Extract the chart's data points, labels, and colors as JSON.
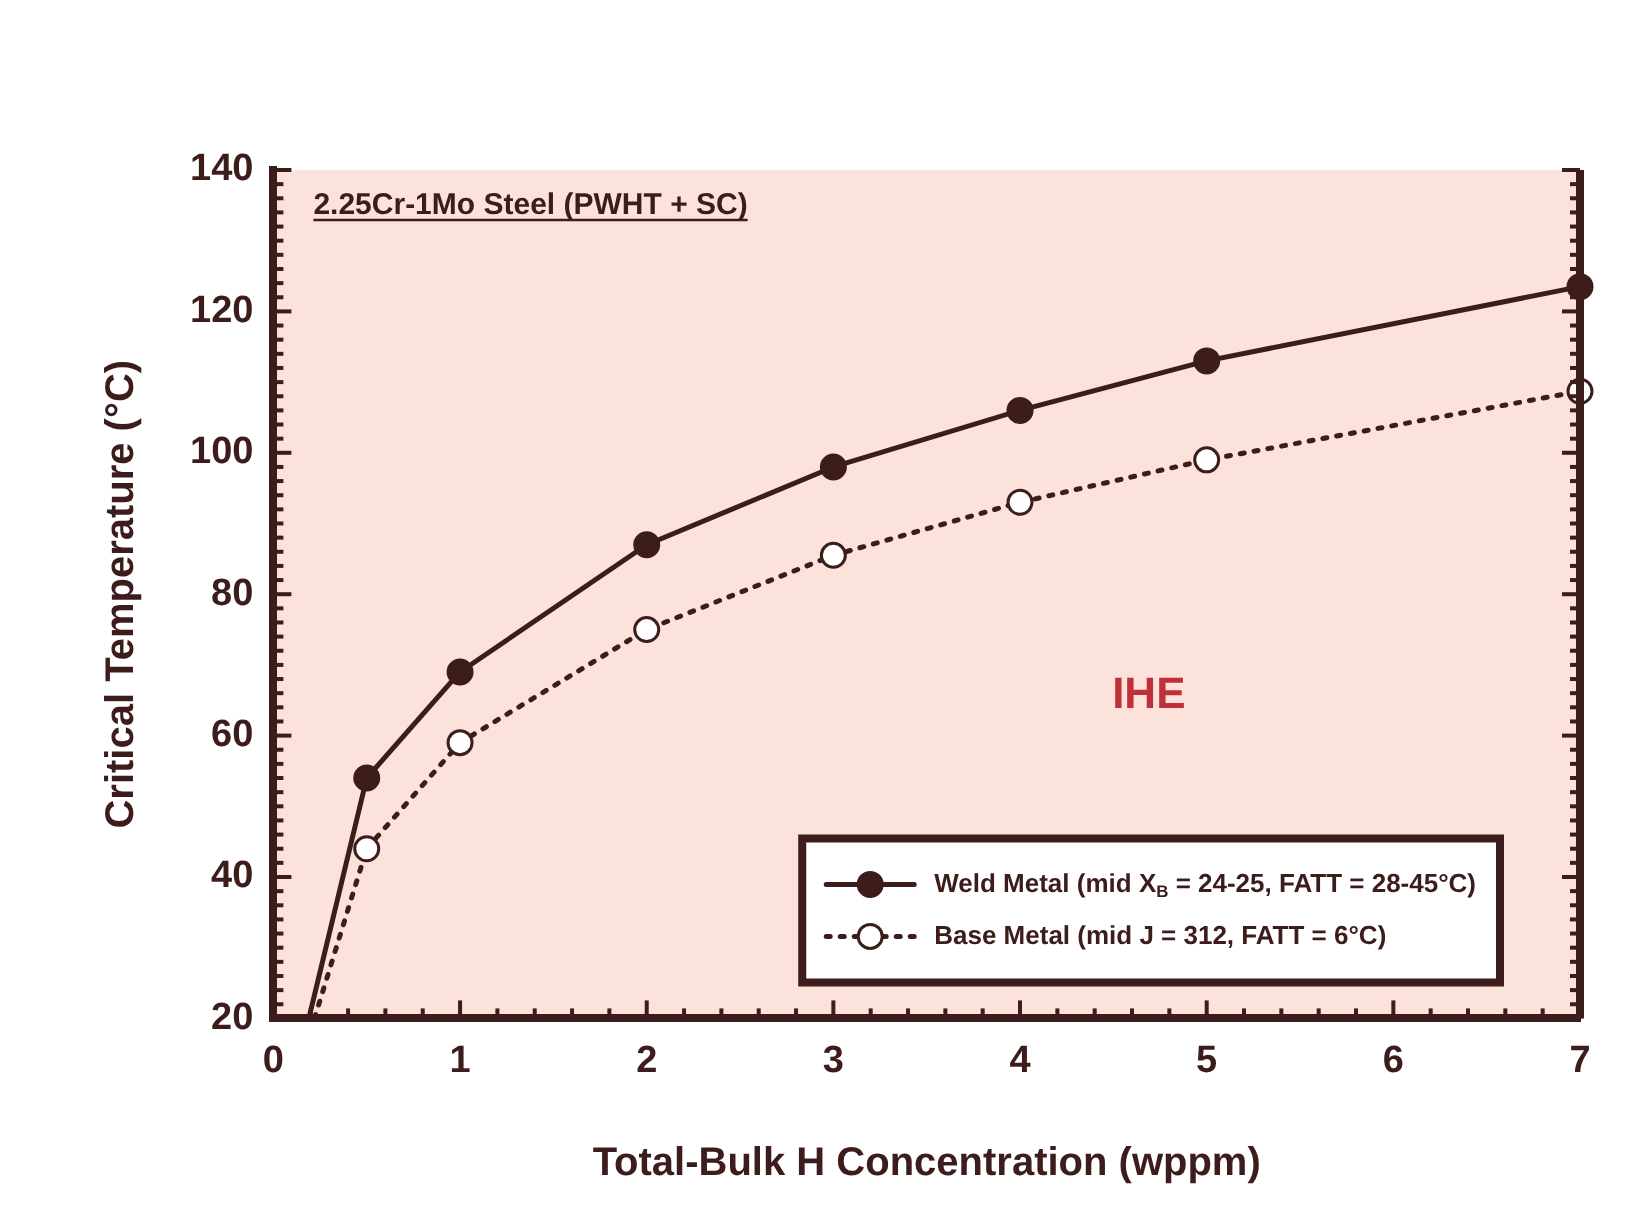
{
  "chart_data": {
    "type": "line",
    "xlabel": "Total-Bulk H Concentration (wppm)",
    "ylabel": "Critical Temperature (°C)",
    "xlim": [
      0,
      7
    ],
    "xticks": [
      0,
      1,
      2,
      3,
      4,
      5,
      6,
      7
    ],
    "ylim": [
      20,
      140
    ],
    "yticks": [
      20,
      40,
      60,
      80,
      100,
      120,
      140
    ],
    "grid": false,
    "legend": "bottom right",
    "annotations": [
      "2.25Cr-1Mo Steel (PWHT + SC)",
      "IHE"
    ],
    "series": [
      {
        "name": "Weld Metal (mid X$_{B}$ = 24-25, FATT = 28-45°C)",
        "color": "#3d1c1c",
        "marker": "circle",
        "line_style": "solid",
        "x": [
          0.5,
          1,
          2,
          3,
          4,
          5,
          7
        ],
        "values": [
          54,
          69,
          87,
          98,
          106,
          113,
          123.5
        ]
      },
      {
        "name": "Base Metal (mid J = 312, FATT = 6°C)",
        "color": "#3d1c1c",
        "marker": "circle",
        "line_style": "dotted",
        "x": [
          0.5,
          1,
          2,
          3,
          4,
          5,
          7
        ],
        "values": [
          44,
          59,
          75,
          85.5,
          93,
          99,
          108.7
        ]
      },
      {
        "color": "#3d1c1c",
        "marker": "none",
        "line_style": "solid",
        "x": [
          0.19,
          0.5
        ],
        "values": [
          20,
          54
        ]
      },
      {
        "color": "#3d1c1c",
        "marker": "none",
        "line_style": "dotted",
        "x": [
          0.22,
          0.5
        ],
        "values": [
          20,
          44
        ]
      }
    ]
  }
}
